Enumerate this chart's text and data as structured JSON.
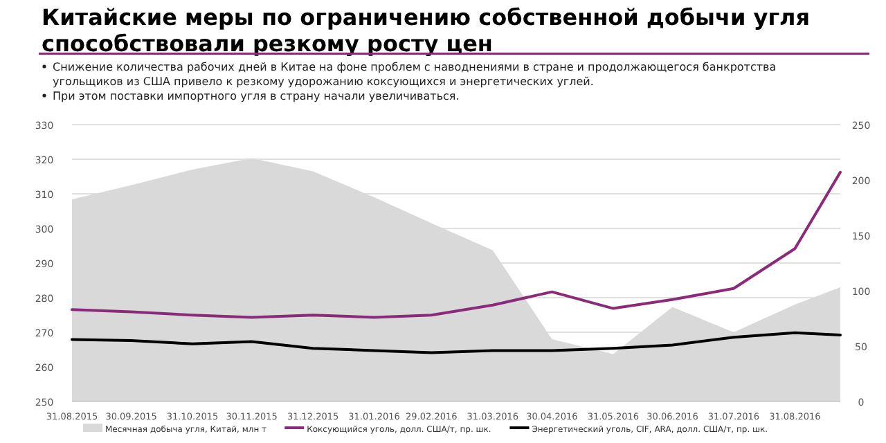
{
  "chart_data": {
    "type": "line",
    "title": "Китайские меры по ограничению собственной добычи угля способствовали резкому росту цен",
    "annotations": [
      "Снижение количества рабочих дней в Китае на фоне проблем с наводнениями в стране и продолжающегося банкротства угольщиков из США привело к резкому удорожанию коксующихся и энергетических углей.",
      "При этом поставки импортного угля в страну начали увеличиваться."
    ],
    "x": [
      "2015-08-31",
      "2015-09-30",
      "2015-10-31",
      "2015-11-30",
      "2015-12-31",
      "2016-01-31",
      "2016-02-29",
      "2016-03-31",
      "2016-04-30",
      "2016-05-31",
      "2016-06-30",
      "2016-07-31",
      "2016-08-31",
      "2016-09-23"
    ],
    "xlim": [
      "2015-08-31",
      "2016-09-23"
    ],
    "xticks": [
      {
        "value": "2015-08-31",
        "label": "31.08.2015"
      },
      {
        "value": "2015-09-30",
        "label": "30.09.2015"
      },
      {
        "value": "2015-10-31",
        "label": "31.10.2015"
      },
      {
        "value": "2015-11-30",
        "label": "30.11.2015"
      },
      {
        "value": "2015-12-31",
        "label": "31.12.2015"
      },
      {
        "value": "2016-01-31",
        "label": "31.01.2016"
      },
      {
        "value": "2016-02-29",
        "label": "29.02.2016"
      },
      {
        "value": "2016-03-31",
        "label": "31.03.2016"
      },
      {
        "value": "2016-04-30",
        "label": "30.04.2016"
      },
      {
        "value": "2016-05-31",
        "label": "31.05.2016"
      },
      {
        "value": "2016-06-30",
        "label": "30.06.2016"
      },
      {
        "value": "2016-07-31",
        "label": "31.07.2016"
      },
      {
        "value": "2016-08-31",
        "label": "31.08.2016"
      }
    ],
    "ylim": [
      250,
      330
    ],
    "yticks": [
      250,
      260,
      270,
      280,
      290,
      300,
      310,
      320,
      330
    ],
    "y2lim": [
      0,
      250
    ],
    "y2ticks": [
      0,
      50,
      100,
      150,
      200,
      250
    ],
    "grid": "y",
    "legend": "bottom",
    "series": [
      {
        "name": "Месячная добыча угля, Китай, млн т",
        "type": "area",
        "color": "#d9d9d9",
        "values": [
          308.4,
          312.5,
          317,
          320.3,
          316.5,
          309,
          301.5,
          293.7,
          268,
          263.7,
          277.3,
          270,
          278,
          283
        ]
      },
      {
        "name": "Коксующийся уголь, долл. США/т, пр. шк.",
        "axis": "y2",
        "color": "#8b2a7a",
        "values": [
          83,
          81,
          78,
          76,
          78,
          76,
          78,
          87,
          99,
          84,
          92,
          102,
          138,
          207
        ]
      },
      {
        "name": "Энергетический уголь, CIF, ARA, долл. США/т, пр. шк.",
        "axis": "y2",
        "color": "#000000",
        "values": [
          56,
          55,
          52,
          54,
          48,
          46,
          44,
          46,
          46,
          48,
          51,
          58,
          62,
          60
        ]
      }
    ]
  }
}
